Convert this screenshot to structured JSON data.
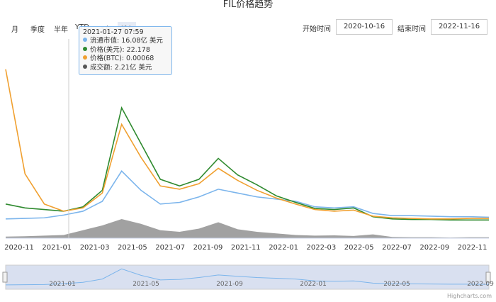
{
  "title": "FIL价格趋势",
  "range_buttons": [
    "月",
    "季度",
    "半年",
    "YTD",
    "1年",
    "所有"
  ],
  "start_label": "开始时间",
  "start_value": "2020-10-16",
  "end_label": "结束时间",
  "end_value": "2022-11-16",
  "tooltip": {
    "date": "2021-01-27 07:59",
    "rows": [
      {
        "label": "流通市值: 16.08亿 美元",
        "color": "#7cb5ec"
      },
      {
        "label": "价格(美元): 22.178",
        "color": "#2f8a2f"
      },
      {
        "label": "价格(BTC): 0.00068",
        "color": "#f0a030"
      },
      {
        "label": "成交额: 2.21亿 美元",
        "color": "#555555"
      }
    ]
  },
  "credit": "Highcharts.com",
  "chart_data": {
    "type": "line",
    "x_ticks": [
      "2020-11",
      "2021-01",
      "2021-03",
      "2021-05",
      "2021-07",
      "2021-09",
      "2021-11",
      "2022-01",
      "2022-03",
      "2022-05",
      "2022-07",
      "2022-09",
      "2022-11"
    ],
    "navigator_ticks": [
      "2021-01",
      "2021-05",
      "2021-09",
      "2022-01",
      "2022-05",
      "2022-09"
    ],
    "x": [
      "2020-10",
      "2020-11",
      "2020-12",
      "2021-01",
      "2021-02",
      "2021-03",
      "2021-04",
      "2021-05",
      "2021-06",
      "2021-07",
      "2021-08",
      "2021-09",
      "2021-10",
      "2021-11",
      "2021-12",
      "2022-01",
      "2022-02",
      "2022-03",
      "2022-04",
      "2022-05",
      "2022-06",
      "2022-07",
      "2022-08",
      "2022-09",
      "2022-10",
      "2022-11"
    ],
    "series": [
      {
        "color": "#7cb5ec",
        "values": [
          8,
          9,
          10,
          15,
          22,
          40,
          95,
          60,
          35,
          38,
          48,
          62,
          55,
          48,
          44,
          40,
          30,
          28,
          30,
          18,
          14,
          14,
          13,
          12,
          12,
          11
        ]
      },
      {
        "color": "#2f8a2f",
        "values": [
          35,
          28,
          25,
          22,
          30,
          60,
          210,
          145,
          80,
          68,
          80,
          118,
          88,
          70,
          50,
          38,
          27,
          25,
          28,
          12,
          8,
          7,
          7,
          6,
          6,
          6
        ]
      },
      {
        "color": "#f0a030",
        "values": [
          280,
          90,
          35,
          22,
          28,
          55,
          180,
          120,
          68,
          62,
          72,
          100,
          78,
          60,
          46,
          35,
          25,
          22,
          24,
          13,
          10,
          9,
          8,
          8,
          9,
          9
        ]
      },
      {
        "color": "#555555",
        "values": [
          5,
          6,
          8,
          10,
          25,
          40,
          60,
          45,
          25,
          20,
          30,
          50,
          28,
          20,
          15,
          10,
          8,
          9,
          7,
          12,
          4,
          3,
          3,
          2,
          3,
          3
        ]
      }
    ]
  }
}
